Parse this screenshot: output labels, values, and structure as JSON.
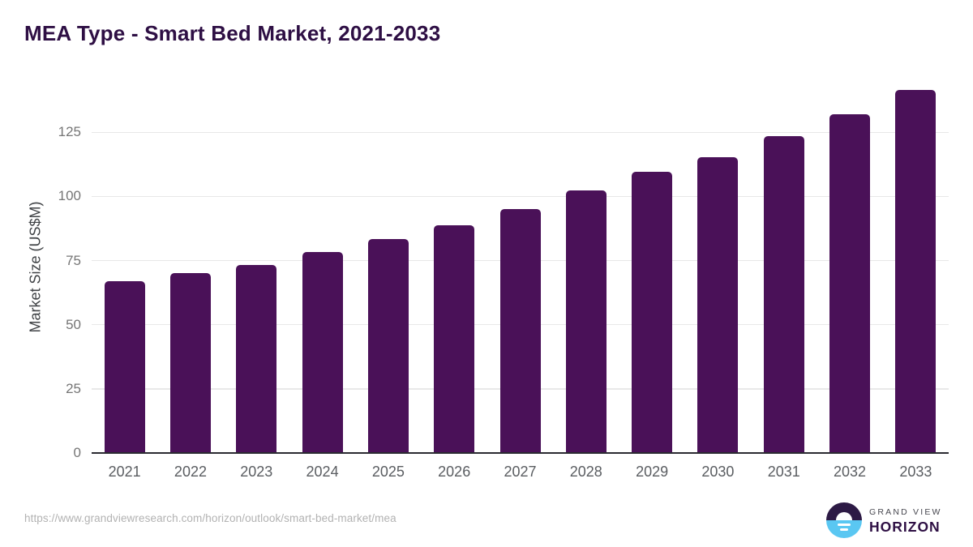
{
  "chart_data": {
    "type": "bar",
    "title": "MEA Type - Smart Bed Market, 2021-2033",
    "ylabel": "Market Size (US$M)",
    "xlabel": "",
    "categories": [
      "2021",
      "2022",
      "2023",
      "2024",
      "2025",
      "2026",
      "2027",
      "2028",
      "2029",
      "2030",
      "2031",
      "2032",
      "2033"
    ],
    "values": [
      66.9,
      70.1,
      73.4,
      78.3,
      83.4,
      88.9,
      95.2,
      102.2,
      109.7,
      115.4,
      123.6,
      131.9,
      141.6
    ],
    "y_ticks": [
      0,
      25,
      50,
      75,
      100,
      125
    ],
    "ylim": [
      0,
      145
    ],
    "grid": "horizontal-light",
    "legend": "none",
    "bar_color": "#4a1158"
  },
  "footer": {
    "source_url": "https://www.grandviewresearch.com/horizon/outlook/smart-bed-market/mea",
    "logo": {
      "top_text": "GRAND VIEW",
      "bottom_text": "HORIZON"
    }
  },
  "colors": {
    "title": "#2e0f44",
    "bar": "#4a1158",
    "gridline": "#e8e8e8",
    "baseline": "#2a2a31",
    "y_tick_text": "#757575",
    "x_tick_text": "#5a5d61",
    "axis_label_text": "#3f4245",
    "url_text": "#b2b2b2",
    "logo_purple": "#2d1a45",
    "logo_blue": "#5ac7f2"
  }
}
